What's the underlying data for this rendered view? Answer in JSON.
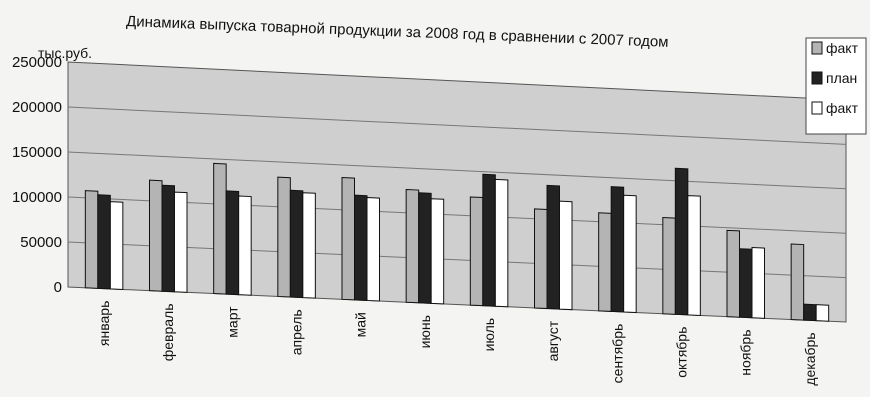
{
  "chart_data": {
    "type": "bar",
    "title": "Динамика выпуска товарной продукции за 2008 год в сравнении с 2007 годом",
    "ylabel": "тыс.руб.",
    "xlabel": "",
    "ylim": [
      0,
      250000
    ],
    "yticks": [
      "0",
      "50000",
      "100000",
      "150000",
      "200000",
      "250000"
    ],
    "categories": [
      "январь",
      "февраль",
      "март",
      "апрель",
      "май",
      "июнь",
      "июль",
      "август",
      "сентябрь",
      "октябрь",
      "ноябрь",
      "декабрь"
    ],
    "series": [
      {
        "name": "факт",
        "color": "#b4b4b4",
        "values": [
          108000,
          123000,
          145000,
          133000,
          136000,
          126000,
          121000,
          111000,
          110000,
          108000,
          97000,
          85000
        ]
      },
      {
        "name": "план",
        "color": "#222222",
        "values": [
          104000,
          118000,
          115000,
          119000,
          117000,
          123000,
          147000,
          138000,
          140000,
          164000,
          77000,
          18000
        ]
      },
      {
        "name": "факт",
        "color": "#ffffff",
        "values": [
          97000,
          111000,
          110000,
          117000,
          115000,
          117000,
          142000,
          121000,
          131000,
          134000,
          79000,
          18000
        ]
      }
    ],
    "grid": true,
    "legend": "right"
  }
}
